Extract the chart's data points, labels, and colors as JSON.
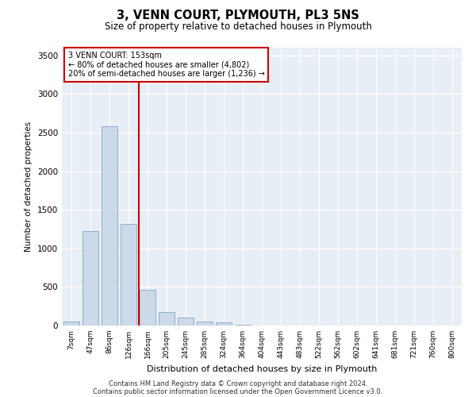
{
  "title": "3, VENN COURT, PLYMOUTH, PL3 5NS",
  "subtitle": "Size of property relative to detached houses in Plymouth",
  "xlabel": "Distribution of detached houses by size in Plymouth",
  "ylabel": "Number of detached properties",
  "bar_color": "#ccd9e8",
  "bar_edge_color": "#7799bb",
  "background_color": "#e8eef5",
  "grid_color": "#ffffff",
  "categories": [
    "7sqm",
    "47sqm",
    "86sqm",
    "126sqm",
    "166sqm",
    "205sqm",
    "245sqm",
    "285sqm",
    "324sqm",
    "364sqm",
    "404sqm",
    "443sqm",
    "483sqm",
    "522sqm",
    "562sqm",
    "602sqm",
    "641sqm",
    "681sqm",
    "721sqm",
    "760sqm",
    "800sqm"
  ],
  "values": [
    50,
    1220,
    2580,
    1320,
    460,
    180,
    100,
    50,
    40,
    10,
    5,
    0,
    0,
    0,
    0,
    0,
    0,
    0,
    0,
    0,
    0
  ],
  "ylim": [
    0,
    3600
  ],
  "yticks": [
    0,
    500,
    1000,
    1500,
    2000,
    2500,
    3000,
    3500
  ],
  "property_label": "3 VENN COURT: 153sqm",
  "annotation_line1": "← 80% of detached houses are smaller (4,802)",
  "annotation_line2": "20% of semi-detached houses are larger (1,236) →",
  "annotation_box_color": "#ffffff",
  "annotation_border_color": "#cc0000",
  "vline_color": "#cc0000",
  "vline_x": 3.55,
  "footer1": "Contains HM Land Registry data © Crown copyright and database right 2024.",
  "footer2": "Contains public sector information licensed under the Open Government Licence v3.0."
}
